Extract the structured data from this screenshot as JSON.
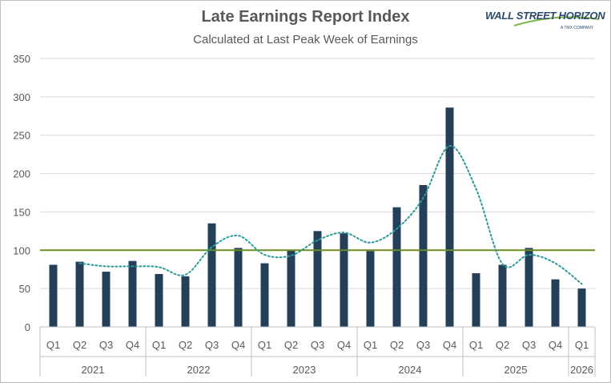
{
  "title": "Late Earnings Report Index",
  "subtitle": "Calculated at Last Peak Week of Earnings",
  "logo": {
    "main": "WALL STREET HORIZON",
    "sub": "A TMX COMPANY"
  },
  "colors": {
    "bars": "#243f5a",
    "trend": "#2e9a9a",
    "baseline": "#6b8e23",
    "grid": "#d9d9d9",
    "text": "#595959"
  },
  "chart_data": {
    "type": "bar",
    "title": "Late Earnings Report Index",
    "subtitle": "Calculated at Last Peak Week of Earnings",
    "ylim": [
      0,
      350
    ],
    "yticks": [
      0,
      50,
      100,
      150,
      200,
      250,
      300,
      350
    ],
    "grid": true,
    "categories": [
      "Q1",
      "Q2",
      "Q3",
      "Q4",
      "Q1",
      "Q2",
      "Q3",
      "Q4",
      "Q1",
      "Q2",
      "Q3",
      "Q4",
      "Q1",
      "Q2",
      "Q3",
      "Q4",
      "Q1",
      "Q2",
      "Q3",
      "Q4",
      "Q1"
    ],
    "years": [
      {
        "label": "2021",
        "count": 4
      },
      {
        "label": "2022",
        "count": 4
      },
      {
        "label": "2023",
        "count": 4
      },
      {
        "label": "2024",
        "count": 4
      },
      {
        "label": "2025",
        "count": 4
      },
      {
        "label": "2026",
        "count": 1
      }
    ],
    "series": [
      {
        "type": "bar",
        "values": [
          81,
          85,
          72,
          86,
          69,
          66,
          135,
          103,
          83,
          100,
          125,
          122,
          99,
          156,
          185,
          286,
          70,
          81,
          103,
          62,
          50
        ]
      },
      {
        "type": "line",
        "style": "dotted",
        "values": [
          null,
          83,
          79,
          79,
          78,
          68,
          104,
          119,
          94,
          93,
          113,
          123,
          110,
          128,
          168,
          236,
          180,
          82,
          94,
          83,
          56
        ]
      },
      {
        "type": "hline",
        "value": 100
      }
    ]
  }
}
